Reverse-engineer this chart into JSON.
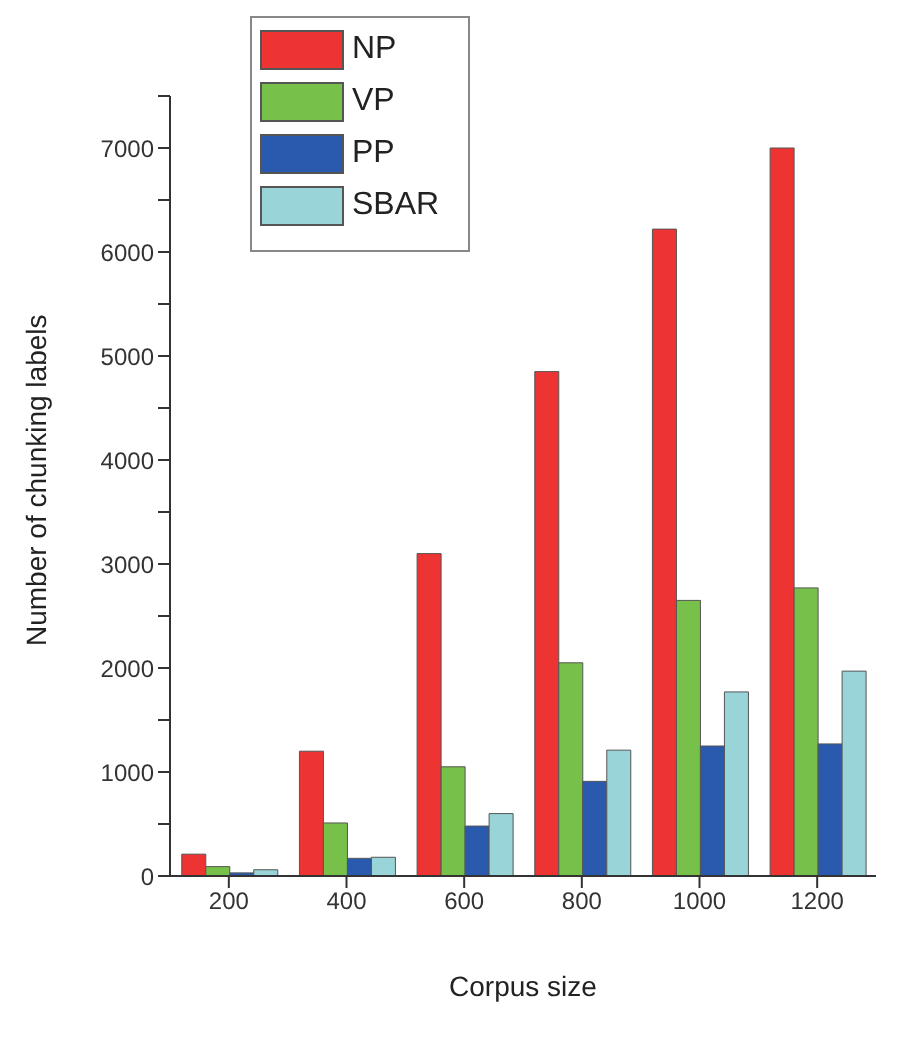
{
  "chart_data": {
    "type": "bar",
    "xlabel": "Corpus size",
    "ylabel": "Number of chunking labels",
    "categories": [
      "200",
      "400",
      "600",
      "800",
      "1000",
      "1200"
    ],
    "series": [
      {
        "name": "NP",
        "color": "#ee3333",
        "values": [
          210,
          1200,
          3100,
          4850,
          6220,
          7000
        ]
      },
      {
        "name": "VP",
        "color": "#77c04a",
        "values": [
          90,
          510,
          1050,
          2050,
          2650,
          2770
        ]
      },
      {
        "name": "PP",
        "color": "#2a5aae",
        "values": [
          30,
          170,
          480,
          910,
          1250,
          1270
        ]
      },
      {
        "name": "SBAR",
        "color": "#99d5d8",
        "values": [
          60,
          180,
          600,
          1210,
          1770,
          1970
        ]
      }
    ],
    "ylim": [
      0,
      7500
    ],
    "yticks": [
      0,
      {
        "value": 500,
        "label": null
      },
      1000,
      {
        "value": 1500,
        "label": null
      },
      2000,
      {
        "value": 2500,
        "label": null
      },
      3000,
      {
        "value": 3500,
        "label": null
      },
      4000,
      {
        "value": 4500,
        "label": null
      },
      5000,
      {
        "value": 5500,
        "label": null
      },
      6000,
      {
        "value": 6500,
        "label": null
      },
      7000,
      {
        "value": 7500,
        "label": null
      }
    ],
    "grid": false,
    "legend": "top left"
  }
}
